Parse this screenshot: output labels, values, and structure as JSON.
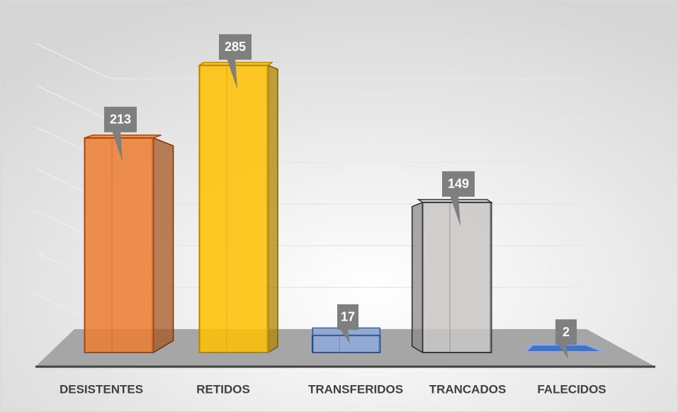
{
  "chart_data": {
    "type": "bar3d",
    "categories": [
      "DESISTENTES",
      "RETIDOS",
      "TRANSFERIDOS",
      "TRANCADOS",
      "FALECIDOS"
    ],
    "values": [
      213,
      285,
      17,
      149,
      2
    ],
    "colors": [
      "#ed7d31",
      "#ffc000",
      "#8faadc",
      "#c9c6c6",
      "#4472c4"
    ],
    "edge_colors": [
      "#a04a12",
      "#b08500",
      "#2f5597",
      "#3a3a3a",
      "#8faadc"
    ],
    "ylim": [
      0,
      300
    ],
    "yticks": [
      0,
      50,
      100,
      150,
      200,
      250,
      300
    ],
    "grid": true
  }
}
